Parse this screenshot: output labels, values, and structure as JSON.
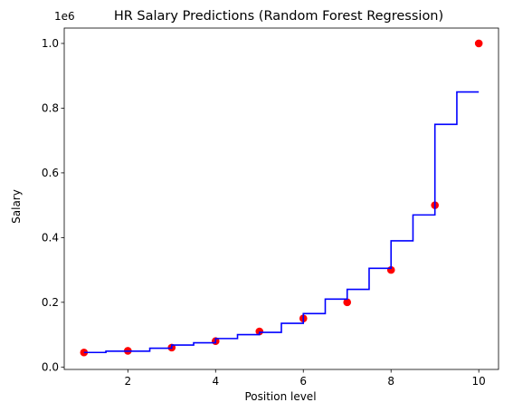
{
  "chart_data": {
    "type": "scatter",
    "title": "HR Salary Predictions (Random Forest Regression)",
    "xlabel": "Position level",
    "ylabel": "Salary",
    "y_offset_label": "1e6",
    "xlim": [
      0.55,
      10.45
    ],
    "ylim": [
      -0.0075,
      1.0475
    ],
    "x_ticks": [
      2,
      4,
      6,
      8,
      10
    ],
    "x_tick_labels": [
      "2",
      "4",
      "6",
      "8",
      "10"
    ],
    "y_ticks": [
      0.0,
      0.2,
      0.4,
      0.6,
      0.8,
      1.0
    ],
    "y_tick_labels": [
      "0.0",
      "0.2",
      "0.4",
      "0.6",
      "0.8",
      "1.0"
    ],
    "grid": false,
    "series": [
      {
        "kind": "scatter",
        "color": "#ff0000",
        "x": [
          1,
          2,
          3,
          4,
          5,
          6,
          7,
          8,
          9,
          10
        ],
        "y": [
          0.045,
          0.05,
          0.06,
          0.08,
          0.11,
          0.15,
          0.2,
          0.3,
          0.5,
          1.0
        ]
      },
      {
        "kind": "step",
        "color": "#0000ff",
        "x": [
          1.0,
          1.5,
          2.5,
          3.0,
          3.5,
          4.0,
          4.5,
          5.0,
          5.5,
          6.0,
          6.5,
          7.0,
          7.5,
          8.0,
          8.5,
          9.0,
          9.5,
          10.0
        ],
        "y": [
          0.045,
          0.049,
          0.058,
          0.068,
          0.075,
          0.088,
          0.1,
          0.107,
          0.135,
          0.165,
          0.21,
          0.24,
          0.305,
          0.39,
          0.47,
          0.75,
          0.85,
          0.85
        ]
      }
    ]
  }
}
